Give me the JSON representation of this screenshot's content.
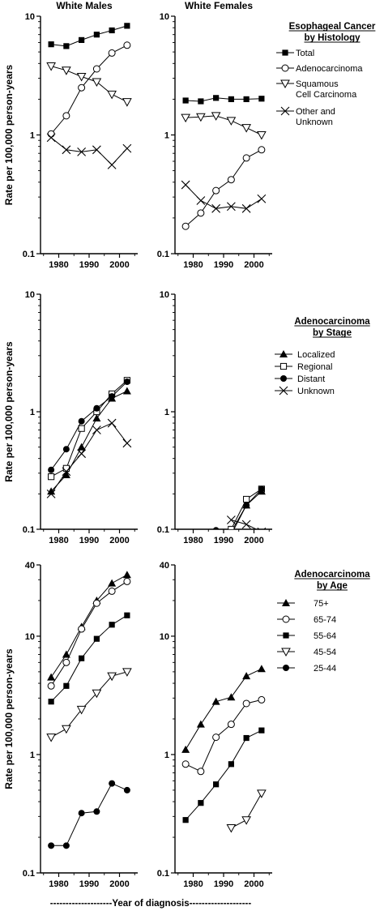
{
  "figure": {
    "col_titles": [
      "White Males",
      "White Females"
    ],
    "ylabel": "Rate per 100,000 person-years",
    "xlabel": "--------------------Year of diagnosis--------------------"
  },
  "chart_data": [
    {
      "type": "line",
      "title": "White Males",
      "ylabel": "Rate per 100,000 person-years",
      "yscale": "log",
      "ylim": [
        0.1,
        10
      ],
      "yticks": [
        "0.1",
        "1",
        "10"
      ],
      "xticks": [
        1980,
        1990,
        2000
      ],
      "x": [
        1977.5,
        1982.5,
        1987.5,
        1992.5,
        1997.5,
        2002.5
      ],
      "series": [
        {
          "name": "Total",
          "marker": "filled-square",
          "values": [
            5.8,
            5.6,
            6.3,
            7.0,
            7.6,
            8.3
          ]
        },
        {
          "name": "Adenocarcinoma",
          "marker": "open-circle",
          "values": [
            1.02,
            1.45,
            2.5,
            3.6,
            4.9,
            5.7
          ]
        },
        {
          "name": "Squamous Cell Carcinoma",
          "marker": "open-triangle-down",
          "values": [
            3.8,
            3.5,
            3.1,
            2.8,
            2.2,
            1.9
          ]
        },
        {
          "name": "Other and Unknown",
          "marker": "x",
          "values": [
            0.95,
            0.75,
            0.72,
            0.75,
            0.56,
            0.77
          ]
        }
      ]
    },
    {
      "type": "line",
      "title": "White Females",
      "yscale": "log",
      "ylim": [
        0.1,
        10
      ],
      "yticks": [
        "0.1",
        "1",
        "10"
      ],
      "xticks": [
        1980,
        1990,
        2000
      ],
      "x": [
        1977.5,
        1982.5,
        1987.5,
        1992.5,
        1997.5,
        2002.5
      ],
      "series": [
        {
          "name": "Total",
          "marker": "filled-square",
          "values": [
            1.95,
            1.92,
            2.05,
            2.0,
            2.0,
            2.02
          ]
        },
        {
          "name": "Adenocarcinoma",
          "marker": "open-circle",
          "values": [
            0.17,
            0.22,
            0.34,
            0.42,
            0.64,
            0.75
          ]
        },
        {
          "name": "Squamous Cell Carcinoma",
          "marker": "open-triangle-down",
          "values": [
            1.4,
            1.42,
            1.45,
            1.32,
            1.15,
            1.0
          ]
        },
        {
          "name": "Other and Unknown",
          "marker": "x",
          "values": [
            0.38,
            0.28,
            0.24,
            0.25,
            0.24,
            0.29
          ]
        }
      ]
    },
    {
      "type": "line",
      "title": "",
      "ylabel": "Rate per 100,000 person-years",
      "yscale": "log",
      "ylim": [
        0.1,
        10
      ],
      "yticks": [
        "0.1",
        "1",
        "10"
      ],
      "xticks": [
        1980,
        1990,
        2000
      ],
      "x": [
        1977.5,
        1982.5,
        1987.5,
        1992.5,
        1997.5,
        2002.5
      ],
      "series": [
        {
          "name": "Localized",
          "marker": "filled-triangle-up",
          "values": [
            0.21,
            0.29,
            0.5,
            0.88,
            1.3,
            1.5
          ]
        },
        {
          "name": "Regional",
          "marker": "open-square",
          "values": [
            0.28,
            0.33,
            0.72,
            1.0,
            1.42,
            1.85
          ]
        },
        {
          "name": "Distant",
          "marker": "filled-circle",
          "values": [
            0.32,
            0.48,
            0.83,
            1.07,
            1.35,
            1.8
          ]
        },
        {
          "name": "Unknown",
          "marker": "x",
          "values": [
            0.2,
            0.31,
            0.44,
            0.7,
            0.8,
            0.54
          ]
        }
      ]
    },
    {
      "type": "line",
      "title": "",
      "yscale": "log",
      "ylim": [
        0.1,
        10
      ],
      "yticks": [
        "0.1",
        "1",
        "10"
      ],
      "xticks": [
        1980,
        1990,
        2000
      ],
      "x": [
        1977.5,
        1982.5,
        1987.5,
        1992.5,
        1997.5,
        2002.5
      ],
      "series": [
        {
          "name": "Localized",
          "marker": "filled-triangle-up",
          "values": [
            null,
            null,
            0.085,
            0.095,
            0.16,
            0.21
          ]
        },
        {
          "name": "Regional",
          "marker": "open-square",
          "values": [
            null,
            null,
            null,
            0.1,
            0.18,
            0.22
          ]
        },
        {
          "name": "Distant",
          "marker": "filled-circle",
          "values": [
            null,
            null,
            0.098,
            0.09,
            0.16,
            0.22
          ]
        },
        {
          "name": "Unknown",
          "marker": "x",
          "values": [
            null,
            null,
            null,
            0.12,
            0.11,
            0.095
          ]
        }
      ]
    },
    {
      "type": "line",
      "title": "",
      "ylabel": "Rate per 100,000 person-years",
      "yscale": "log",
      "ylim": [
        0.1,
        40
      ],
      "yticks": [
        "0.1",
        "1",
        "10",
        "40"
      ],
      "xticks": [
        1980,
        1990,
        2000
      ],
      "x": [
        1977.5,
        1982.5,
        1987.5,
        1992.5,
        1997.5,
        2002.5
      ],
      "series": [
        {
          "name": "75+",
          "marker": "filled-triangle-up",
          "values": [
            4.5,
            7.0,
            12.0,
            20.0,
            28.0,
            33.0
          ]
        },
        {
          "name": "65-74",
          "marker": "open-circle",
          "values": [
            3.8,
            6.0,
            11.5,
            19.0,
            24.0,
            29.0
          ]
        },
        {
          "name": "55-64",
          "marker": "filled-square",
          "values": [
            2.8,
            3.8,
            6.5,
            9.5,
            12.5,
            15.0
          ]
        },
        {
          "name": "45-54",
          "marker": "open-triangle-down",
          "values": [
            1.4,
            1.65,
            2.4,
            3.3,
            4.6,
            5.0
          ]
        },
        {
          "name": "25-44",
          "marker": "filled-circle",
          "values": [
            0.17,
            0.17,
            0.32,
            0.33,
            0.57,
            0.5
          ]
        }
      ]
    },
    {
      "type": "line",
      "title": "",
      "yscale": "log",
      "ylim": [
        0.1,
        40
      ],
      "yticks": [
        "0.1",
        "1",
        "10",
        "40"
      ],
      "xticks": [
        1980,
        1990,
        2000
      ],
      "x": [
        1977.5,
        1982.5,
        1987.5,
        1992.5,
        1997.5,
        2002.5
      ],
      "series": [
        {
          "name": "75+",
          "marker": "filled-triangle-up",
          "values": [
            1.1,
            1.8,
            2.8,
            3.05,
            4.6,
            5.3
          ]
        },
        {
          "name": "65-74",
          "marker": "open-circle",
          "values": [
            0.83,
            0.72,
            1.4,
            1.8,
            2.7,
            2.9
          ]
        },
        {
          "name": "55-64",
          "marker": "filled-square",
          "values": [
            0.28,
            0.39,
            0.56,
            0.83,
            1.38,
            1.6
          ]
        },
        {
          "name": "45-54",
          "marker": "open-triangle-down",
          "values": [
            null,
            null,
            null,
            0.24,
            0.28,
            0.47
          ]
        },
        {
          "name": "25-44",
          "marker": "filled-circle",
          "values": [
            null,
            null,
            null,
            null,
            null,
            null
          ]
        }
      ]
    }
  ],
  "legends": [
    {
      "title": [
        "Esophageal Cancer",
        "by Histology"
      ],
      "entries": [
        {
          "marker": "filled-square",
          "lines": [
            "Total"
          ]
        },
        {
          "marker": "open-circle",
          "lines": [
            "Adenocarcinoma"
          ]
        },
        {
          "marker": "open-triangle-down",
          "lines": [
            "Squamous",
            "Cell Carcinoma"
          ]
        },
        {
          "marker": "x",
          "lines": [
            "Other and",
            "Unknown"
          ]
        }
      ]
    },
    {
      "title": [
        "Adenocarcinoma",
        "by Stage"
      ],
      "entries": [
        {
          "marker": "filled-triangle-up",
          "lines": [
            "Localized"
          ]
        },
        {
          "marker": "open-square",
          "lines": [
            "Regional"
          ]
        },
        {
          "marker": "filled-circle",
          "lines": [
            "Distant"
          ]
        },
        {
          "marker": "x",
          "lines": [
            "Unknown"
          ]
        }
      ]
    },
    {
      "title": [
        "Adenocarcinoma",
        "by Age"
      ],
      "entries": [
        {
          "marker": "filled-triangle-up",
          "lines": [
            "75+"
          ]
        },
        {
          "marker": "open-circle",
          "lines": [
            "65-74"
          ]
        },
        {
          "marker": "filled-square",
          "lines": [
            "55-64"
          ]
        },
        {
          "marker": "open-triangle-down",
          "lines": [
            "45-54"
          ]
        },
        {
          "marker": "filled-circle",
          "lines": [
            "25-44"
          ]
        }
      ]
    }
  ]
}
